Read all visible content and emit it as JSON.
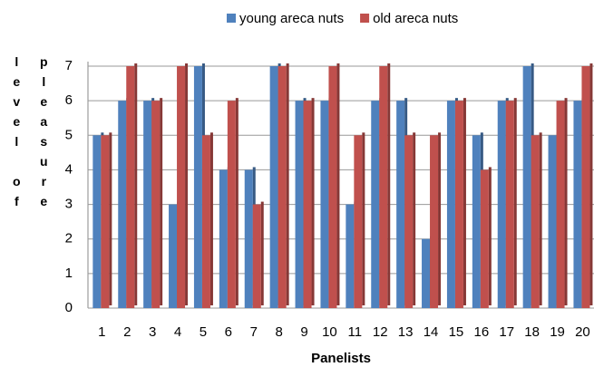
{
  "chart_data": {
    "type": "bar",
    "y_label_lines": [
      "level of",
      "pleasure"
    ],
    "x_label": "Panelists",
    "categories": [
      "1",
      "2",
      "3",
      "4",
      "5",
      "6",
      "7",
      "8",
      "9",
      "10",
      "11",
      "12",
      "13",
      "14",
      "15",
      "16",
      "17",
      "18",
      "19",
      "20"
    ],
    "series": [
      {
        "name": "young areca nuts",
        "color": "#4f81bd",
        "values": [
          5,
          6,
          6,
          3,
          7,
          4,
          4,
          7,
          6,
          6,
          3,
          6,
          6,
          2,
          6,
          5,
          6,
          7,
          5,
          6
        ]
      },
      {
        "name": "old areca nuts",
        "color": "#c0504d",
        "values": [
          5,
          7,
          6,
          7,
          5,
          6,
          3,
          7,
          6,
          7,
          5,
          7,
          5,
          5,
          6,
          4,
          6,
          5,
          6,
          7
        ]
      }
    ],
    "ylim": [
      0,
      7
    ],
    "yticks": [
      0,
      1,
      2,
      3,
      4,
      5,
      6,
      7
    ],
    "grid": true,
    "legend": "top"
  }
}
